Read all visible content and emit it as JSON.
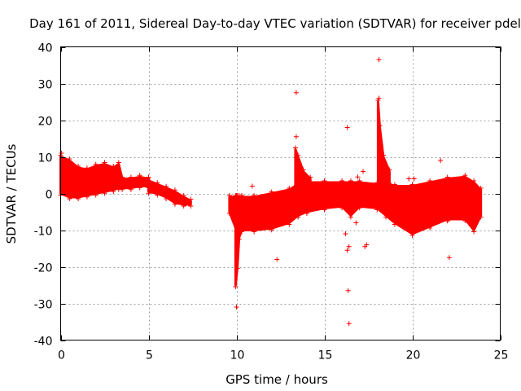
{
  "chart_data": {
    "type": "scatter",
    "title": "Day 161 of 2011, Sidereal Day-to-day VTEC variation (SDTVAR) for receiver pdel",
    "xlabel": "GPS time / hours",
    "ylabel": "SDTVAR / TECUs",
    "xlim": [
      0,
      25
    ],
    "ylim": [
      -40,
      40
    ],
    "xticks": [
      0,
      5,
      10,
      15,
      20,
      25
    ],
    "yticks": [
      -40,
      -30,
      -20,
      -10,
      0,
      10,
      20,
      30,
      40
    ],
    "grid": true,
    "marker": "+",
    "color": "#ff0000",
    "bands": [
      {
        "name": "segment-1a",
        "points": [
          [
            0,
            0.0,
            10.0
          ],
          [
            0.5,
            -1.0,
            9.0
          ],
          [
            1,
            -1.0,
            7.0
          ],
          [
            1.5,
            -0.5,
            6.5
          ],
          [
            2,
            0.0,
            7.5
          ],
          [
            2.5,
            0.5,
            8.0
          ],
          [
            3,
            1.0,
            7.0
          ],
          [
            3.3,
            1.5,
            8.0
          ],
          [
            3.5,
            1.5,
            4.0
          ],
          [
            4,
            1.5,
            4.0
          ],
          [
            4.5,
            2.0,
            4.5
          ],
          [
            5,
            2.0,
            4.0
          ]
        ]
      },
      {
        "name": "segment-1b",
        "points": [
          [
            5,
            0.5,
            3.5
          ],
          [
            5.5,
            0.0,
            2.5
          ],
          [
            6,
            -1.0,
            1.5
          ],
          [
            6.5,
            -2.5,
            0.5
          ],
          [
            7,
            -3.0,
            -1.0
          ],
          [
            7.4,
            -3.0,
            -2.0
          ]
        ]
      },
      {
        "name": "segment-2",
        "points": [
          [
            9.6,
            -5.0,
            -1.0
          ],
          [
            10,
            -10.0,
            -1.0
          ],
          [
            11,
            -10.0,
            -1.0
          ],
          [
            12,
            -9.5,
            0.0
          ],
          [
            13,
            -8.0,
            1.0
          ],
          [
            13.5,
            -6.0,
            2.5
          ],
          [
            14,
            -5.0,
            3.0
          ],
          [
            15,
            -4.0,
            3.0
          ],
          [
            16,
            -3.5,
            3.0
          ],
          [
            16.5,
            -6.0,
            3.0
          ],
          [
            17,
            -3.5,
            3.0
          ],
          [
            18,
            -4.0,
            2.5
          ],
          [
            18.5,
            -6.0,
            3.0
          ],
          [
            19,
            -8.0,
            2.0
          ],
          [
            20,
            -11.0,
            2.0
          ],
          [
            21,
            -9.0,
            3.0
          ],
          [
            22,
            -7.0,
            4.0
          ],
          [
            23,
            -7.0,
            4.5
          ],
          [
            23.5,
            -10.0,
            3.0
          ],
          [
            23.9,
            -6.0,
            1.0
          ]
        ]
      },
      {
        "name": "dip-near-10h",
        "points": [
          [
            9.95,
            -25.0,
            -1.0
          ],
          [
            10.05,
            -20.0,
            -1.0
          ],
          [
            10.15,
            -12.0,
            -1.0
          ],
          [
            10.3,
            -10.0,
            -1.0
          ]
        ]
      },
      {
        "name": "spike-13.4h",
        "points": [
          [
            13.35,
            2.0,
            12.0
          ],
          [
            13.5,
            2.0,
            10.0
          ],
          [
            13.8,
            2.0,
            6.0
          ],
          [
            14.2,
            2.0,
            4.0
          ]
        ]
      },
      {
        "name": "spike-18.1h",
        "points": [
          [
            18.05,
            2.0,
            25.0
          ],
          [
            18.15,
            1.0,
            18.0
          ],
          [
            18.35,
            1.0,
            10.0
          ],
          [
            18.7,
            1.0,
            6.0
          ]
        ]
      }
    ],
    "outliers": [
      [
        0.05,
        11
      ],
      [
        10,
        -31
      ],
      [
        12.3,
        -18
      ],
      [
        13.4,
        27.5
      ],
      [
        13.4,
        15.5
      ],
      [
        10.9,
        2
      ],
      [
        16.3,
        18
      ],
      [
        16.35,
        -26.5
      ],
      [
        16.4,
        -35.5
      ],
      [
        16.3,
        -15.5
      ],
      [
        16.4,
        -14.5
      ],
      [
        16.2,
        -11
      ],
      [
        16.8,
        -8
      ],
      [
        17.4,
        -14
      ],
      [
        17.3,
        -14.5
      ],
      [
        18.1,
        36.5
      ],
      [
        18.1,
        26
      ],
      [
        17.2,
        6
      ],
      [
        16.9,
        4.5
      ],
      [
        21.6,
        9
      ],
      [
        22.1,
        -17.5
      ],
      [
        22.0,
        -7.5
      ],
      [
        19.8,
        4
      ],
      [
        20.1,
        4
      ]
    ]
  }
}
